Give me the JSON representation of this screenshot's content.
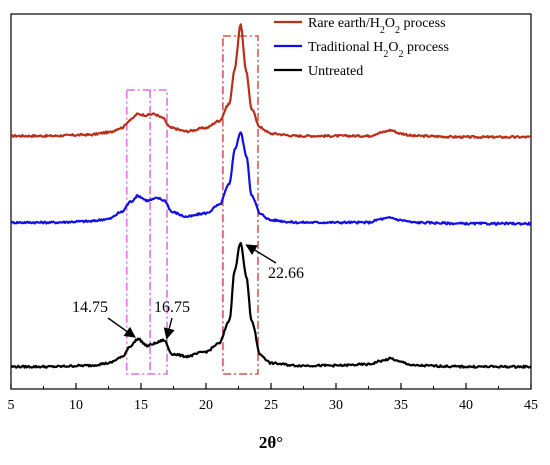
{
  "chart_data": {
    "type": "line",
    "title": "",
    "xlabel": "2θ°",
    "ylabel": "",
    "xlim": [
      5,
      45
    ],
    "ylim": [
      0,
      3.25
    ],
    "x_ticks": [
      "5",
      "10",
      "15",
      "20",
      "25",
      "30",
      "35",
      "40",
      "45"
    ],
    "y_ticks_visible": false,
    "grid": false,
    "legend_position": "top-right",
    "legend": [
      {
        "text_main": "Rare earth/H",
        "sub": "2",
        "text_mid": "O",
        "sub2": "2",
        "text_end": " process",
        "color": "#b8301c"
      },
      {
        "text_main": "Traditional H",
        "sub": "2",
        "text_mid": "O",
        "sub2": "2",
        "text_end": " process",
        "color": "#1010e6"
      },
      {
        "text_main": "Untreated",
        "sub": "",
        "text_mid": "",
        "sub2": "",
        "text_end": "",
        "color": "#000000"
      }
    ],
    "series": [
      {
        "color": "#b8301c",
        "offset": 2.0,
        "points": [
          [
            5,
            0.02
          ],
          [
            8,
            0.02
          ],
          [
            11,
            0.03
          ],
          [
            12.5,
            0.05
          ],
          [
            13.5,
            0.09
          ],
          [
            14.2,
            0.16
          ],
          [
            14.75,
            0.21
          ],
          [
            15.4,
            0.2
          ],
          [
            16.0,
            0.21
          ],
          [
            16.6,
            0.18
          ],
          [
            17.3,
            0.09
          ],
          [
            18.5,
            0.06
          ],
          [
            20,
            0.09
          ],
          [
            21,
            0.15
          ],
          [
            21.8,
            0.3
          ],
          [
            22.2,
            0.6
          ],
          [
            22.66,
            0.98
          ],
          [
            23.1,
            0.58
          ],
          [
            23.5,
            0.25
          ],
          [
            24.2,
            0.09
          ],
          [
            25,
            0.04
          ],
          [
            27,
            0.02
          ],
          [
            30,
            0.02
          ],
          [
            32.5,
            0.02
          ],
          [
            33.5,
            0.05
          ],
          [
            34.2,
            0.07
          ],
          [
            35,
            0.04
          ],
          [
            36,
            0.02
          ],
          [
            40,
            0.01
          ],
          [
            45,
            0.01
          ]
        ]
      },
      {
        "color": "#1010e6",
        "offset": 1.25,
        "points": [
          [
            5,
            0.02
          ],
          [
            8,
            0.02
          ],
          [
            11,
            0.03
          ],
          [
            12.5,
            0.05
          ],
          [
            13.5,
            0.11
          ],
          [
            14.2,
            0.2
          ],
          [
            14.75,
            0.25
          ],
          [
            15.5,
            0.21
          ],
          [
            16.3,
            0.23
          ],
          [
            16.8,
            0.21
          ],
          [
            17.4,
            0.11
          ],
          [
            18.5,
            0.07
          ],
          [
            20,
            0.1
          ],
          [
            21,
            0.17
          ],
          [
            21.8,
            0.35
          ],
          [
            22.2,
            0.65
          ],
          [
            22.66,
            0.8
          ],
          [
            23.1,
            0.6
          ],
          [
            23.5,
            0.26
          ],
          [
            24.2,
            0.09
          ],
          [
            25,
            0.04
          ],
          [
            27,
            0.02
          ],
          [
            30,
            0.02
          ],
          [
            32.5,
            0.02
          ],
          [
            33.5,
            0.05
          ],
          [
            34.2,
            0.06
          ],
          [
            35,
            0.04
          ],
          [
            36,
            0.02
          ],
          [
            40,
            0.01
          ],
          [
            45,
            0.01
          ]
        ]
      },
      {
        "color": "#000000",
        "offset": 0.0,
        "points": [
          [
            5,
            0.02
          ],
          [
            8,
            0.02
          ],
          [
            11,
            0.03
          ],
          [
            12.5,
            0.05
          ],
          [
            13.5,
            0.1
          ],
          [
            14.2,
            0.2
          ],
          [
            14.75,
            0.26
          ],
          [
            15.5,
            0.2
          ],
          [
            16.0,
            0.22
          ],
          [
            16.75,
            0.25
          ],
          [
            17.4,
            0.13
          ],
          [
            18.5,
            0.11
          ],
          [
            20,
            0.15
          ],
          [
            21,
            0.22
          ],
          [
            21.8,
            0.42
          ],
          [
            22.2,
            0.85
          ],
          [
            22.66,
            1.1
          ],
          [
            23.1,
            0.8
          ],
          [
            23.5,
            0.42
          ],
          [
            24.2,
            0.12
          ],
          [
            25,
            0.05
          ],
          [
            27,
            0.03
          ],
          [
            30,
            0.03
          ],
          [
            32.5,
            0.04
          ],
          [
            33.5,
            0.07
          ],
          [
            34.2,
            0.09
          ],
          [
            35,
            0.06
          ],
          [
            36,
            0.03
          ],
          [
            40,
            0.02
          ],
          [
            45,
            0.02
          ]
        ]
      }
    ],
    "annotations": [
      {
        "text": "14.75",
        "x": 14.75,
        "y": 0.26
      },
      {
        "text": "16.75",
        "x": 16.75,
        "y": 0.25
      },
      {
        "text": "22.66",
        "x": 22.66,
        "y": 1.1
      }
    ],
    "highlight_boxes": [
      {
        "color": "#e070e0",
        "x_from": 13.9,
        "x_to": 17.0
      },
      {
        "color": "#d35a4a",
        "x_from": 21.3,
        "x_to": 24.0
      }
    ]
  }
}
